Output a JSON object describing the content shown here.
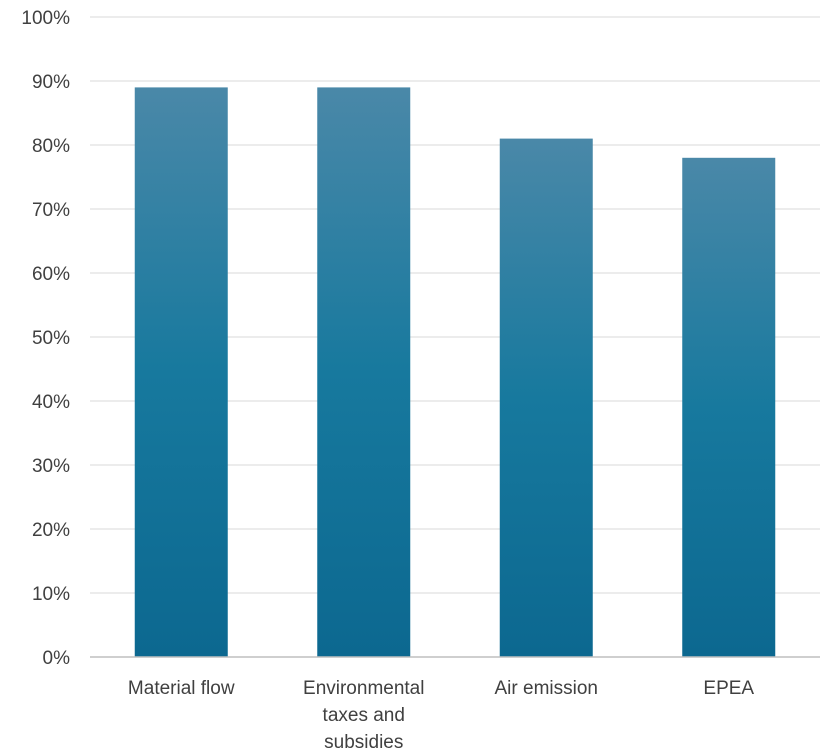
{
  "chart_data": {
    "type": "bar",
    "categories": [
      [
        "Material flow"
      ],
      [
        "Environmental",
        "taxes and",
        "subsidies"
      ],
      [
        "Air emission"
      ],
      [
        "EPEA"
      ]
    ],
    "values": [
      89,
      89,
      81,
      78
    ],
    "ylim": [
      0,
      100
    ],
    "yticks": [
      "0%",
      "10%",
      "20%",
      "30%",
      "40%",
      "50%",
      "60%",
      "70%",
      "80%",
      "90%",
      "100%"
    ],
    "ytick_values": [
      0,
      10,
      20,
      30,
      40,
      50,
      60,
      70,
      80,
      90,
      100
    ],
    "grid": true,
    "legend": "none",
    "colors": {
      "bar_top": "#4a88a8",
      "bar_mid": "#17799e",
      "bar_bottom": "#0c6890",
      "grid": "#d9d9d9",
      "axis": "#bfbfbf",
      "text": "#404040"
    }
  }
}
